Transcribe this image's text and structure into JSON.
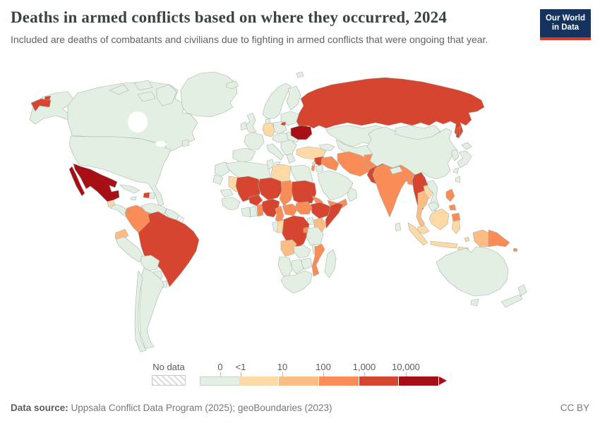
{
  "header": {
    "title": "Deaths in armed conflicts based on where they occurred, 2024",
    "subtitle": "Included are deaths of combatants and civilians due to fighting in armed conflicts that were ongoing that year."
  },
  "logo": {
    "line1": "Our World",
    "line2": "in Data"
  },
  "legend": {
    "no_data_label": "No data",
    "tick_labels": [
      "0",
      "<1",
      "10",
      "100",
      "1,000",
      "10,000"
    ],
    "tick_positions": [
      29,
      58,
      117,
      175,
      233,
      292
    ],
    "bucket_order": [
      "0",
      "lt1",
      "10",
      "100",
      "1000",
      "10000"
    ]
  },
  "footer": {
    "source_label": "Data source:",
    "source_text": " Uppsala Conflict Data Program (2025); geoBoundaries (2023)",
    "license": "CC BY"
  },
  "chart_data": {
    "type": "choropleth",
    "title": "Deaths in armed conflicts based on where they occurred, 2024",
    "year": 2024,
    "unit": "deaths",
    "projection": "world",
    "palette": {
      "nodata": "#ffffff",
      "0": "#e4efe4",
      "lt1": "#fdd9a5",
      "10": "#fcbd84",
      "100": "#f98c57",
      "1000": "#d6452f",
      "10000": "#a50f15"
    },
    "color_scale_buckets": [
      {
        "range": "0",
        "color": "#e4efe4"
      },
      {
        "range": "<1 to 10",
        "color": "#fdd9a5"
      },
      {
        "range": "10 to 100",
        "color": "#fcbd84"
      },
      {
        "range": "100 to 1,000",
        "color": "#f98c57"
      },
      {
        "range": "1,000 to 10,000",
        "color": "#d6452f"
      },
      {
        "range": "10,000+",
        "color": "#a50f15"
      }
    ],
    "countries_by_bucket": {
      "10000+": [
        "Mexico",
        "Ukraine"
      ],
      "1000-10000": [
        "Russia",
        "Brazil",
        "Haiti",
        "Syria",
        "Pakistan",
        "Myanmar",
        "Mali",
        "Burkina Faso",
        "Niger",
        "Nigeria",
        "Sudan",
        "Ethiopia",
        "Somalia",
        "Democratic Republic of Congo"
      ],
      "100-1000": [
        "Colombia",
        "Israel",
        "Iraq",
        "Iran",
        "Afghanistan",
        "India",
        "Bangladesh",
        "Yemen",
        "Chad",
        "Cameroon",
        "Central African Republic",
        "South Sudan",
        "Benin",
        "Togo",
        "Eritrea",
        "Rwanda",
        "Burundi",
        "Mozambique",
        "Philippines",
        "Papua New Guinea",
        "Solomon Islands"
      ],
      "10-100": [
        "Ecuador",
        "Thailand",
        "Kenya",
        "Angola",
        "Indonesian Papua"
      ],
      "lt1-10": [
        "Germany",
        "Turkey",
        "Libya",
        "Mauritania",
        "Guatemala",
        "Lebanon",
        "Laos",
        "Malaysia",
        "Indonesia",
        "Republic of the Congo"
      ],
      "0": [
        "United States",
        "Canada",
        "Greenland",
        "Most of Europe",
        "Venezuela",
        "Peru",
        "Argentina",
        "Chile",
        "Saudi Arabia",
        "Kazakhstan",
        "China",
        "Mongolia",
        "Japan",
        "Vietnam",
        "Australia",
        "New Zealand",
        "Egypt",
        "Algeria",
        "Morocco",
        "South Africa",
        "Tanzania",
        "Madagascar"
      ],
      "no_data": [
        "French Guiana"
      ]
    },
    "regions": {
      "usa": "0",
      "canada": "0",
      "greenland": "0",
      "mexico": "10000",
      "guatemala": "lt1",
      "central-america": "0",
      "cuba": "0",
      "jamaica": "0",
      "haiti": "1000",
      "dominican-republic": "0",
      "venezuela": "0",
      "guyanas": "0",
      "french-guiana": "nodata",
      "colombia": "100",
      "ecuador": "10",
      "peru": "0",
      "brazil": "1000",
      "bolivia": "0",
      "paraguay": "0",
      "uruguay": "0",
      "argentina": "0",
      "chile": "0",
      "iceland": "0",
      "uk": "0",
      "ireland": "0",
      "scandinavia": "0",
      "finland": "0",
      "denmark": "0",
      "baltics-belarus": "0",
      "poland": "0",
      "germany": "lt1",
      "france": "0",
      "iberia": "0",
      "italy": "0",
      "central-europe": "0",
      "balkans": "0",
      "greece": "0",
      "romania": "0",
      "ukraine": "10000",
      "russia": "1000",
      "svalbard": "0",
      "kazakhstan": "0",
      "central-asia": "0",
      "caucasus": "0",
      "turkey": "lt1",
      "syria": "1000",
      "lebanon": "lt1",
      "israel": "100",
      "jordan": "0",
      "iraq": "100",
      "iran": "100",
      "saudi-arabia": "0",
      "yemen": "100",
      "oman": "0",
      "afghanistan": "100",
      "pakistan": "1000",
      "india": "100",
      "nepal": "0",
      "bangladesh": "100",
      "sri-lanka": "0",
      "myanmar": "1000",
      "thailand": "10",
      "laos": "lt1",
      "vietnam": "0",
      "cambodia": "0",
      "malaysia": "lt1",
      "indonesia": "lt1",
      "timor": "0",
      "indonesian-papua": "10",
      "papua-new-guinea": "100",
      "solomon-islands": "100",
      "philippines": "100",
      "taiwan": "0",
      "china": "0",
      "mongolia": "0",
      "korea": "0",
      "japan": "0",
      "australia": "0",
      "new-zealand": "0",
      "morocco": "0",
      "western-sahara": "0",
      "algeria": "0",
      "tunisia": "0",
      "libya": "lt1",
      "egypt": "0",
      "mauritania": "lt1",
      "senegal": "0",
      "guinea-region": "0",
      "mali": "1000",
      "burkina-faso": "1000",
      "niger": "1000",
      "nigeria": "1000",
      "benin-togo": "100",
      "ghana": "0",
      "ivory-coast": "0",
      "chad": "100",
      "sudan": "1000",
      "eritrea": "100",
      "ethiopia": "1000",
      "somalia": "1000",
      "kenya": "10",
      "uganda": "0",
      "south-sudan": "100",
      "central-african-republic": "100",
      "cameroon": "100",
      "drc": "1000",
      "gabon": "0",
      "congo": "lt1",
      "angola": "10",
      "zambia": "0",
      "tanzania": "0",
      "rwanda-burundi": "100",
      "malawi": "0",
      "mozambique": "100",
      "zimbabwe": "0",
      "botswana": "0",
      "namibia": "0",
      "south-africa": "0",
      "madagascar": "0"
    }
  }
}
